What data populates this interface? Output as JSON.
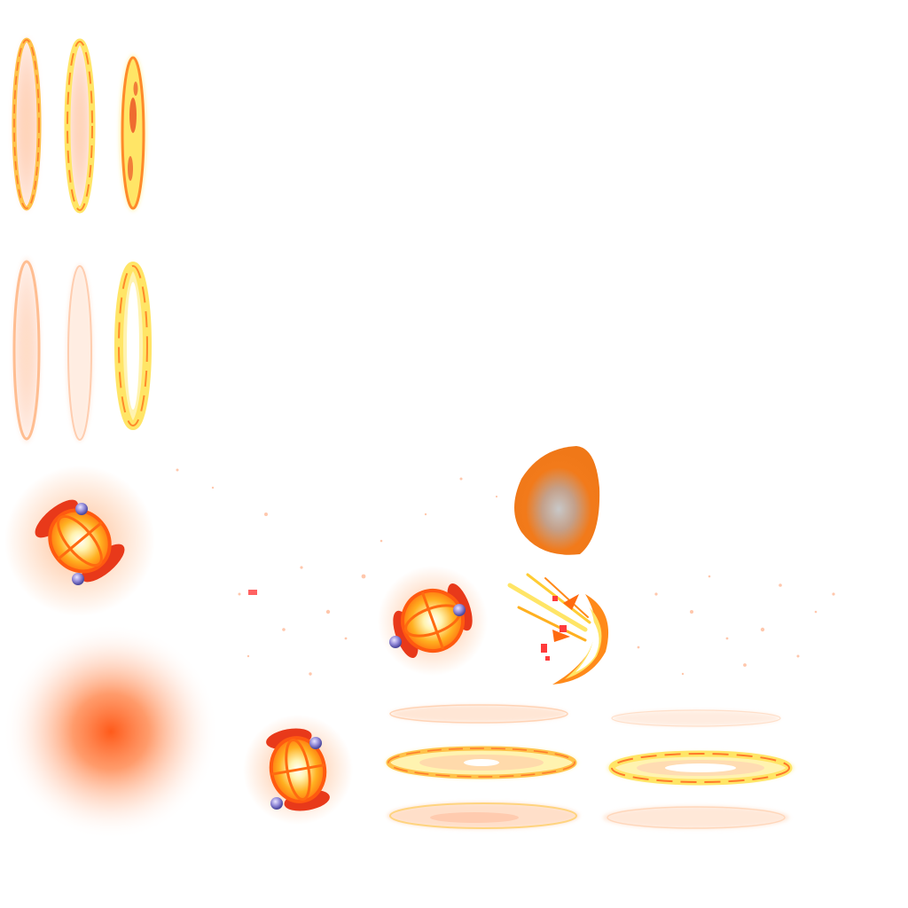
{
  "sheet": {
    "description_visible_text": "",
    "background_color": "#ffffff"
  },
  "palette": {
    "fire_orange": "#ff6a1a",
    "fire_red": "#e8391a",
    "fire_yellow": "#ffe566",
    "fire_pale": "#fff3b0",
    "ember_pink": "#ff9a6a",
    "orb_blue": "#6e7ad6",
    "orb_purple": "#b7a1e6",
    "spark_red": "#ff3b3b",
    "shell_orange": "#f27a1a",
    "shell_gray": "#b0b0b0"
  },
  "sprites": [
    {
      "id": "fire-ring-portal-frame",
      "icon": "fire-ring-icon"
    },
    {
      "id": "lantern-orb-sprite",
      "icon": "fire-lantern-icon"
    },
    {
      "id": "radial-glow-sprite",
      "icon": "glow-icon"
    },
    {
      "id": "orange-shell-sprite",
      "icon": "orange-shell-icon"
    },
    {
      "id": "fire-burst-sprite",
      "icon": "fire-burst-icon"
    },
    {
      "id": "ground-fire-ring-sprite",
      "icon": "ground-ring-icon"
    },
    {
      "id": "ember-particles",
      "icon": "ember-icon"
    }
  ]
}
